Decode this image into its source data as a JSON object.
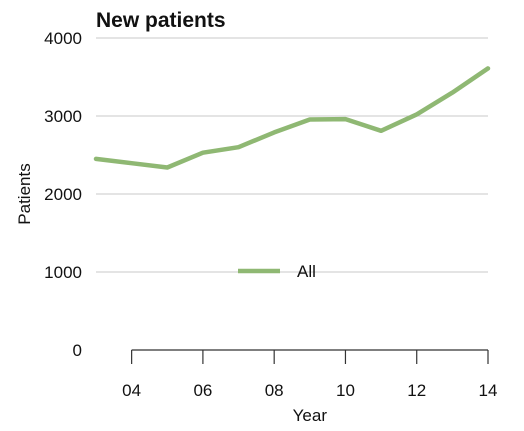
{
  "chart_data": {
    "type": "line",
    "title": "New patients",
    "xlabel": "Year",
    "ylabel": "Patients",
    "x": [
      3,
      4,
      5,
      6,
      7,
      8,
      9,
      10,
      11,
      12,
      13,
      14
    ],
    "series": [
      {
        "name": "All",
        "color": "#8fb873",
        "values": [
          2450,
          2395,
          2340,
          2530,
          2600,
          2790,
          2955,
          2960,
          2810,
          3020,
          3300,
          3610
        ]
      }
    ],
    "x_ticks": [
      4,
      6,
      8,
      10,
      12,
      14
    ],
    "x_tick_labels": [
      "04",
      "06",
      "08",
      "10",
      "12",
      "14"
    ],
    "xlim": [
      3,
      14
    ],
    "y_ticks": [
      0,
      1000,
      2000,
      3000,
      4000
    ],
    "y_tick_labels": [
      "0",
      "1000",
      "2000",
      "3000",
      "4000"
    ],
    "ylim": [
      0,
      4000
    ],
    "grid": true,
    "legend": "center"
  }
}
